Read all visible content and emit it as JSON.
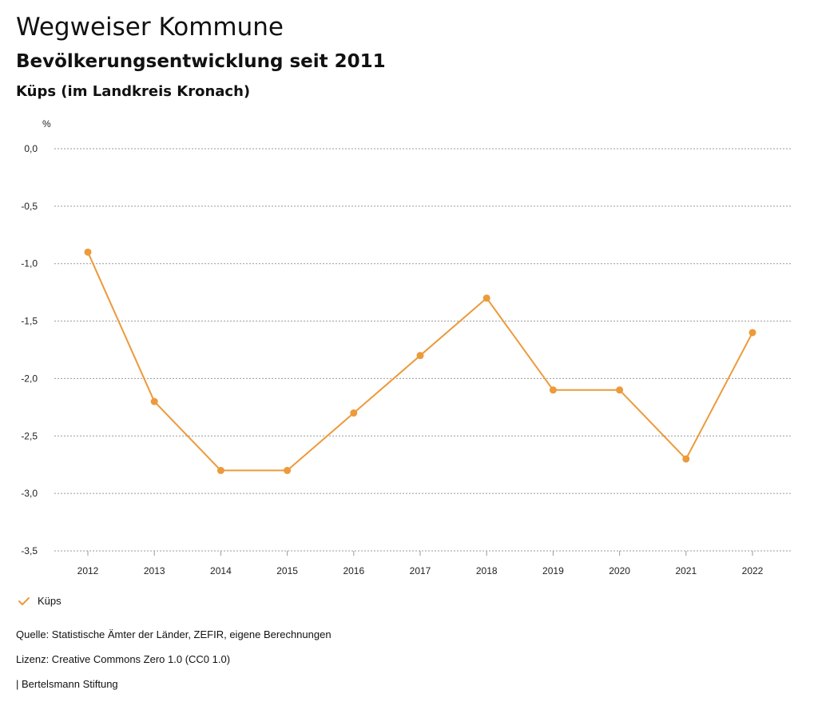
{
  "header": {
    "title": "Wegweiser Kommune",
    "subtitle": "Bevölkerungsentwicklung seit 2011",
    "region": "Küps (im Landkreis Kronach)"
  },
  "chart_data": {
    "type": "line",
    "ylabel": "%",
    "xlabel": "",
    "ylim": [
      -3.5,
      0.0
    ],
    "yticks": [
      0.0,
      -0.5,
      -1.0,
      -1.5,
      -2.0,
      -2.5,
      -3.0,
      -3.5
    ],
    "ytick_labels": [
      "0,0",
      "-0,5",
      "-1,0",
      "-1,5",
      "-2,0",
      "-2,5",
      "-3,0",
      "-3,5"
    ],
    "categories": [
      "2012",
      "2013",
      "2014",
      "2015",
      "2016",
      "2017",
      "2018",
      "2019",
      "2020",
      "2021",
      "2022"
    ],
    "grid": true,
    "legend_position": "bottom-left",
    "series": [
      {
        "name": "Küps",
        "color": "#ec9a3a",
        "values": [
          -0.9,
          -2.2,
          -2.8,
          -2.8,
          -2.3,
          -1.8,
          -1.3,
          -2.1,
          -2.1,
          -2.7,
          -1.6
        ]
      }
    ]
  },
  "legend": {
    "items": [
      {
        "label": "Küps",
        "icon": "check-icon",
        "color": "#ec9a3a"
      }
    ]
  },
  "footer": {
    "source": "Quelle: Statistische Ämter der Länder, ZEFIR, eigene Berechnungen",
    "license": "Lizenz: Creative Commons Zero 1.0 (CC0 1.0)",
    "credit": "| Bertelsmann Stiftung"
  }
}
